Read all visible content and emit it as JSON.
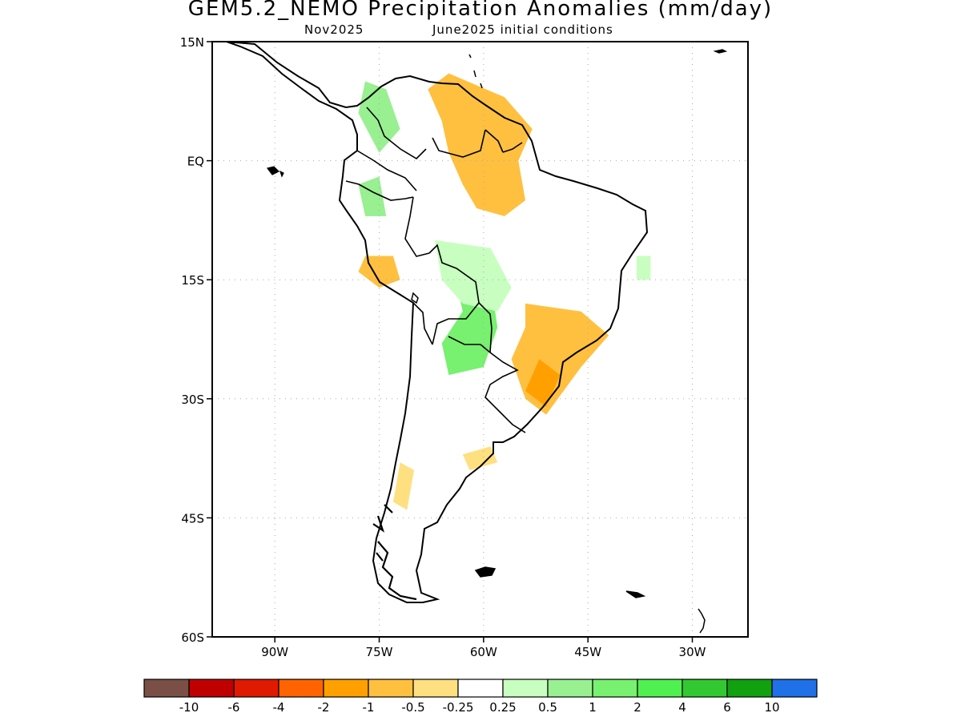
{
  "title": "GEM5.2_NEMO Precipitation Anomalies (mm/day)",
  "subtitle_left": "Nov2025",
  "subtitle_right": "June2025 initial conditions",
  "map": {
    "lon_range": [
      -99,
      -22
    ],
    "lat_range": [
      -60,
      15
    ],
    "gridlines": true,
    "lon_ticks": [
      {
        "value": -90,
        "label": "90W"
      },
      {
        "value": -75,
        "label": "75W"
      },
      {
        "value": -60,
        "label": "60W"
      },
      {
        "value": -45,
        "label": "45W"
      },
      {
        "value": -30,
        "label": "30W"
      }
    ],
    "lat_ticks": [
      {
        "value": 15,
        "label": "15N"
      },
      {
        "value": 0,
        "label": "EQ"
      },
      {
        "value": -15,
        "label": "15S"
      },
      {
        "value": -30,
        "label": "30S"
      },
      {
        "value": -45,
        "label": "45S"
      },
      {
        "value": -60,
        "label": "60S"
      }
    ]
  },
  "colorbar": {
    "colors": [
      "#7a5046",
      "#c00000",
      "#e01a00",
      "#ff6400",
      "#ffa000",
      "#ffc040",
      "#ffe080",
      "#ffffff",
      "#c8ffc0",
      "#98f090",
      "#78f070",
      "#50f050",
      "#32c832",
      "#10a010",
      "#2070e8"
    ],
    "labels": [
      "-10",
      "-6",
      "-4",
      "-2",
      "-1",
      "-0.5",
      "-0.25",
      "0.25",
      "0.5",
      "1",
      "2",
      "4",
      "6",
      "10"
    ]
  },
  "anomaly_regions": [
    {
      "class": "-1",
      "color": "#ffc040",
      "points": [
        [
          -65,
          11
        ],
        [
          -57,
          8
        ],
        [
          -53,
          4
        ],
        [
          -55,
          0
        ],
        [
          -54,
          -5
        ],
        [
          -57,
          -7
        ],
        [
          -61,
          -6
        ],
        [
          -63,
          -3
        ],
        [
          -65,
          1
        ],
        [
          -66,
          5
        ],
        [
          -68,
          9
        ]
      ]
    },
    {
      "class": "-1",
      "color": "#ffc040",
      "points": [
        [
          -54,
          -18
        ],
        [
          -46,
          -19
        ],
        [
          -42,
          -22
        ],
        [
          -46,
          -26
        ],
        [
          -51,
          -32
        ],
        [
          -54,
          -30
        ],
        [
          -56,
          -25
        ],
        [
          -54,
          -21
        ]
      ]
    },
    {
      "class": "-1",
      "color": "#ffc040",
      "points": [
        [
          -77,
          -12
        ],
        [
          -73,
          -12
        ],
        [
          -72,
          -15
        ],
        [
          -75,
          -16
        ],
        [
          -78,
          -14
        ]
      ]
    },
    {
      "class": "-2",
      "color": "#ffa000",
      "points": [
        [
          -52,
          -25
        ],
        [
          -49,
          -27
        ],
        [
          -51,
          -31
        ],
        [
          -54,
          -29
        ]
      ]
    },
    {
      "class": "-0.5",
      "color": "#ffe080",
      "points": [
        [
          -63,
          -37
        ],
        [
          -59,
          -36
        ],
        [
          -58,
          -38
        ],
        [
          -62,
          -39
        ]
      ]
    },
    {
      "class": "-0.5",
      "color": "#ffe080",
      "points": [
        [
          -72,
          -38
        ],
        [
          -70,
          -39
        ],
        [
          -71,
          -44
        ],
        [
          -73,
          -43
        ]
      ]
    },
    {
      "class": "1",
      "color": "#78f070",
      "points": [
        [
          -64,
          -15
        ],
        [
          -59,
          -15
        ],
        [
          -58,
          -21
        ],
        [
          -60,
          -26
        ],
        [
          -65,
          -27
        ],
        [
          -66,
          -23
        ],
        [
          -63,
          -19
        ]
      ]
    },
    {
      "class": "0.5",
      "color": "#98f090",
      "points": [
        [
          -77,
          10
        ],
        [
          -74,
          9
        ],
        [
          -72,
          4
        ],
        [
          -75,
          1
        ],
        [
          -78,
          6
        ]
      ]
    },
    {
      "class": "0.5",
      "color": "#98f090",
      "points": [
        [
          -78,
          -3
        ],
        [
          -75,
          -2
        ],
        [
          -74,
          -7
        ],
        [
          -77,
          -7
        ]
      ]
    },
    {
      "class": "0.25",
      "color": "#c8ffc0",
      "points": [
        [
          -67,
          -10
        ],
        [
          -59,
          -11
        ],
        [
          -56,
          -16
        ],
        [
          -58,
          -19
        ],
        [
          -63,
          -18
        ],
        [
          -66,
          -15
        ]
      ]
    },
    {
      "class": "0.25",
      "color": "#c8ffc0",
      "points": [
        [
          -38,
          -12
        ],
        [
          -36,
          -12
        ],
        [
          -36,
          -15
        ],
        [
          -38,
          -15
        ]
      ]
    }
  ]
}
